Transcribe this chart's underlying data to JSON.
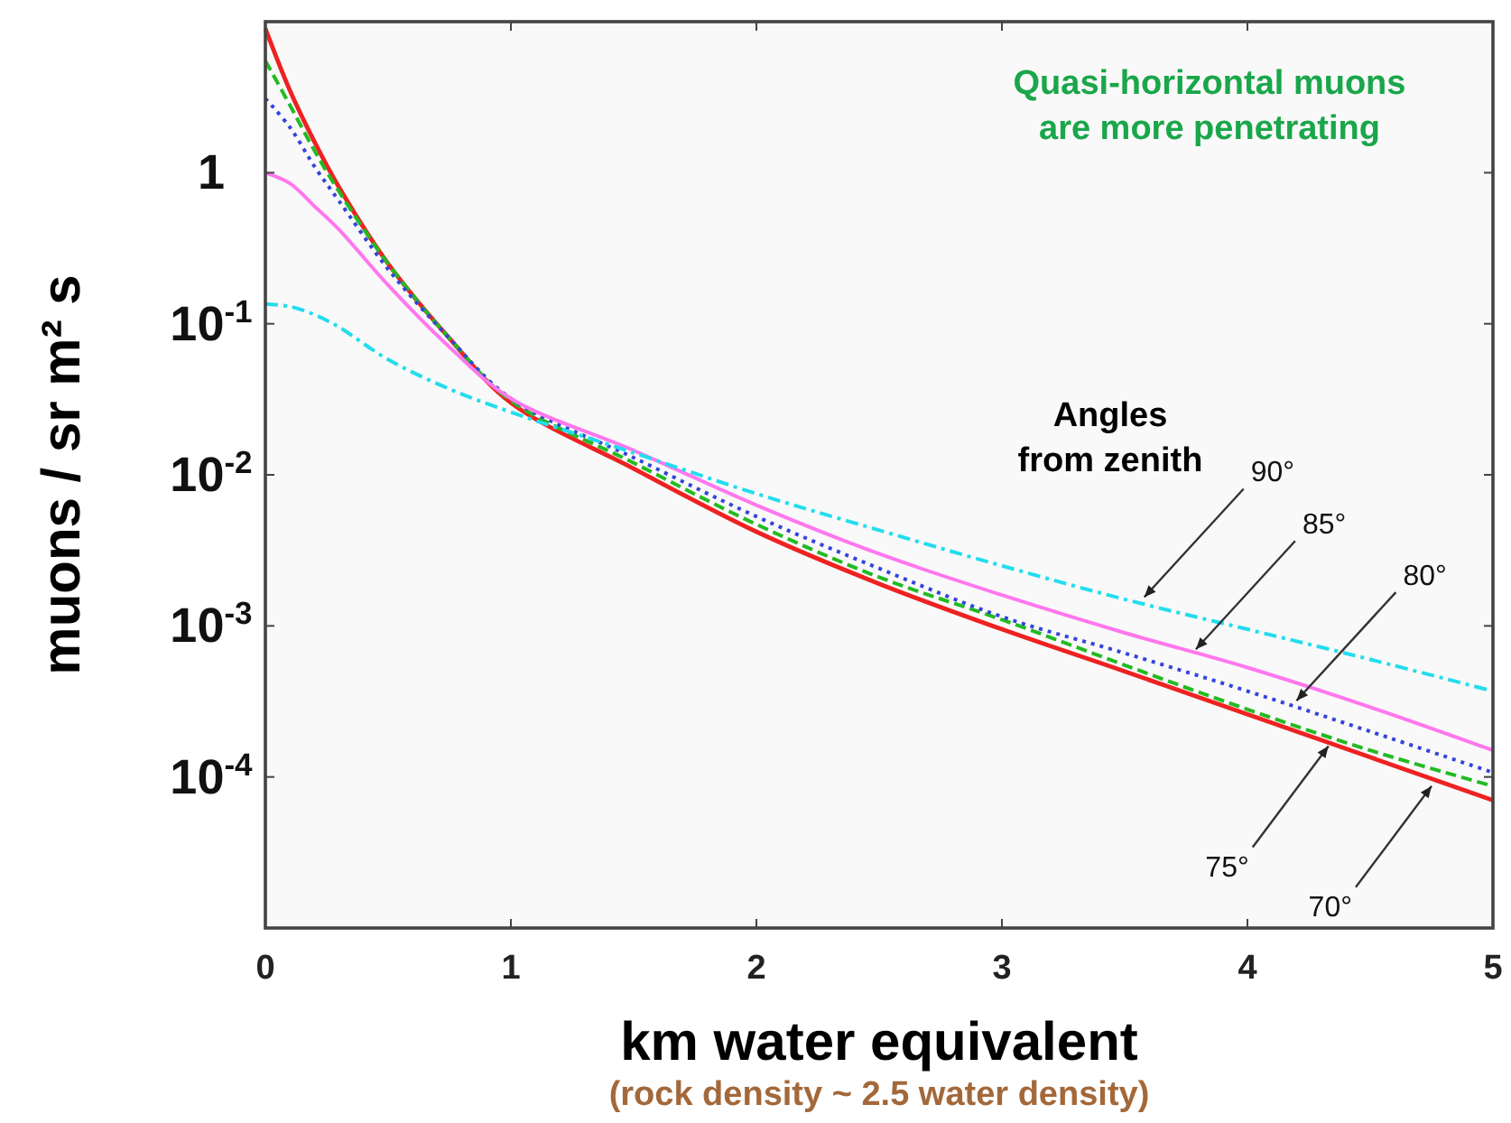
{
  "chart_data": {
    "type": "line",
    "xlabel": "km water equivalent",
    "ylabel": "muons / sr m² s",
    "log": "y",
    "grid": false,
    "x": [
      0,
      0.1,
      0.2,
      0.3,
      0.5,
      0.75,
      1,
      1.5,
      2,
      2.5,
      3,
      3.5,
      4,
      4.5,
      5
    ],
    "xlim": [
      0,
      5
    ],
    "xticks": [
      0,
      1,
      2,
      3,
      4,
      5
    ],
    "ylim": [
      1e-05,
      10
    ],
    "yticks": [
      1,
      {
        "value": 0.1,
        "label": "10$^{-1}$"
      },
      {
        "value": 0.01,
        "label": "10$^{-2}$"
      },
      {
        "value": 0.001,
        "label": "10$^{-3}$"
      },
      {
        "value": 0.0001,
        "label": "10$^{-4}$"
      }
    ],
    "series": [
      {
        "color": "#ee2222",
        "line_style": "solid",
        "values": [
          9,
          3.5,
          1.6,
          0.8,
          0.25,
          0.08,
          0.03,
          0.011,
          0.0042,
          0.0019,
          0.00095,
          0.0005,
          0.00026,
          0.000135,
          7e-05
        ]
      },
      {
        "color": "#22bb22",
        "line_style": "dashed",
        "values": [
          5.5,
          2.8,
          1.4,
          0.75,
          0.25,
          0.08,
          0.031,
          0.012,
          0.0047,
          0.0021,
          0.0011,
          0.00055,
          0.00028,
          0.00015,
          8.7e-05
        ]
      },
      {
        "color": "#3344dd",
        "line_style": "dotted",
        "values": [
          3.1,
          2,
          1.1,
          0.65,
          0.23,
          0.08,
          0.032,
          0.013,
          0.0053,
          0.0024,
          0.00115,
          0.00066,
          0.00037,
          0.0002,
          0.000107
        ]
      },
      {
        "color": "#ff77ee",
        "line_style": "solid",
        "values": [
          1,
          0.85,
          0.6,
          0.42,
          0.18,
          0.07,
          0.032,
          0.0145,
          0.0063,
          0.003,
          0.0016,
          0.0009,
          0.00053,
          0.00029,
          0.00015
        ]
      },
      {
        "color": "#22ddee",
        "line_style": "dashdot",
        "values": [
          0.135,
          0.13,
          0.115,
          0.095,
          0.058,
          0.037,
          0.026,
          0.014,
          0.0075,
          0.0043,
          0.0025,
          0.0015,
          0.00095,
          0.0006,
          0.00037
        ]
      }
    ],
    "annotations": [
      "(rock density ~ 2.5 water density)",
      "Quasi-horizontal muons\nare more penetrating",
      "Angles\nfrom zenith",
      {
        "text": "90°",
        "x": 3.58,
        "y": 0.00155
      },
      {
        "text": "85°",
        "x": 3.79,
        "y": 0.0007
      },
      {
        "text": "80°",
        "x": 4.2,
        "y": 0.00032
      },
      {
        "text": "75°",
        "x": 4.33,
        "y": 0.00016
      },
      {
        "text": "70°",
        "x": 4.75,
        "y": 8.7e-05
      }
    ]
  }
}
